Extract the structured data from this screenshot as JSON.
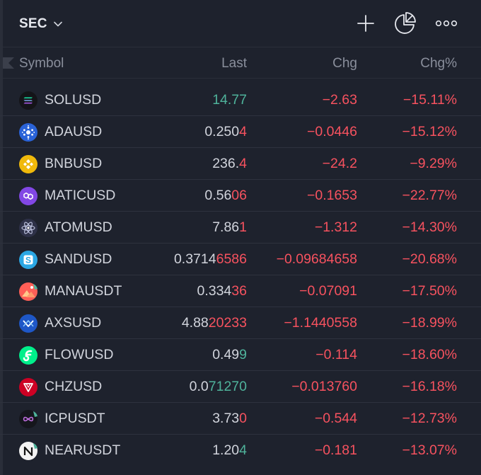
{
  "header": {
    "list_name": "SEC",
    "icons": [
      "chevron-down-icon",
      "plus-icon",
      "pie-chart-icon",
      "more-horizontal-icon"
    ]
  },
  "columns": {
    "symbol": "Symbol",
    "last": "Last",
    "chg": "Chg",
    "chg_pct": "Chg%"
  },
  "colors": {
    "background": "#1e222d",
    "up": "#4fb39b",
    "down": "#f7525f",
    "text": "#d1d4dc",
    "muted": "#8a8f9c"
  },
  "rows": [
    {
      "symbol": "SOLUSD",
      "icon": "solana-icon",
      "last_head": "",
      "last_tail": "14.77",
      "last_tail_color": "green",
      "chg": "−2.63",
      "chg_pct": "−15.11%"
    },
    {
      "symbol": "ADAUSD",
      "icon": "cardano-icon",
      "last_head": "0.250",
      "last_tail": "4",
      "last_tail_color": "red",
      "chg": "−0.0446",
      "chg_pct": "−15.12%"
    },
    {
      "symbol": "BNBUSD",
      "icon": "bnb-icon",
      "last_head": "236.",
      "last_tail": "4",
      "last_tail_color": "red",
      "chg": "−24.2",
      "chg_pct": "−9.29%"
    },
    {
      "symbol": "MATICUSD",
      "icon": "polygon-icon",
      "last_head": "0.56",
      "last_tail": "06",
      "last_tail_color": "red",
      "chg": "−0.1653",
      "chg_pct": "−22.77%"
    },
    {
      "symbol": "ATOMUSD",
      "icon": "cosmos-icon",
      "last_head": "7.86",
      "last_tail": "1",
      "last_tail_color": "red",
      "chg": "−1.312",
      "chg_pct": "−14.30%"
    },
    {
      "symbol": "SANDUSD",
      "icon": "sandbox-icon",
      "last_head": "0.3714",
      "last_tail": "6586",
      "last_tail_color": "red",
      "chg": "−0.09684658",
      "chg_pct": "−20.68%"
    },
    {
      "symbol": "MANAUSDT",
      "icon": "decentraland-icon",
      "last_head": "0.334",
      "last_tail": "36",
      "last_tail_color": "red",
      "chg": "−0.07091",
      "chg_pct": "−17.50%"
    },
    {
      "symbol": "AXSUSD",
      "icon": "axie-icon",
      "last_head": "4.88",
      "last_tail": "20233",
      "last_tail_color": "red",
      "chg": "−1.1440558",
      "chg_pct": "−18.99%"
    },
    {
      "symbol": "FLOWUSD",
      "icon": "flow-icon",
      "last_head": "0.49",
      "last_tail": "9",
      "last_tail_color": "green",
      "chg": "−0.114",
      "chg_pct": "−18.60%"
    },
    {
      "symbol": "CHZUSD",
      "icon": "chiliz-icon",
      "last_head": "0.0",
      "last_tail": "71270",
      "last_tail_color": "green",
      "chg": "−0.013760",
      "chg_pct": "−16.18%"
    },
    {
      "symbol": "ICPUSDT",
      "icon": "icp-icon",
      "last_head": "3.73",
      "last_tail": "0",
      "last_tail_color": "red",
      "chg": "−0.544",
      "chg_pct": "−12.73%"
    },
    {
      "symbol": "NEARUSDT",
      "icon": "near-icon",
      "last_head": "1.20",
      "last_tail": "4",
      "last_tail_color": "green",
      "chg": "−0.181",
      "chg_pct": "−13.07%"
    }
  ]
}
